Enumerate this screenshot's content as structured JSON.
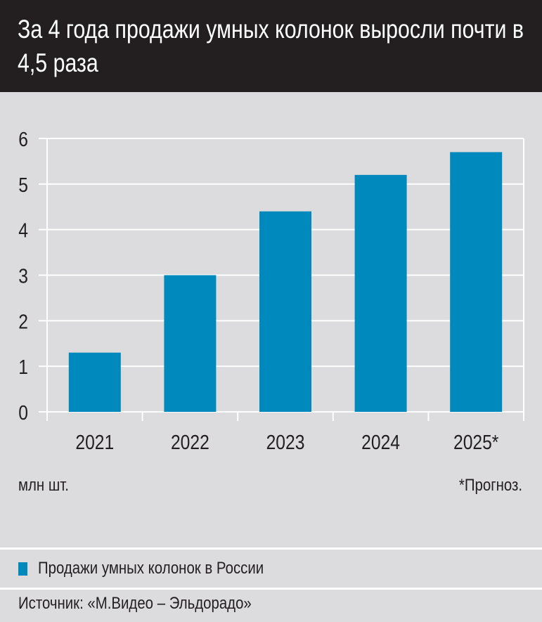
{
  "title": "За 4 года продажи умных колонок выросли почти в 4,5 раза",
  "unit_label": "млн шт.",
  "footnote": "*Прогноз.",
  "legend_label": "Продажи умных колонок в России",
  "source": "Источник: «М.Видео – Эльдорадо»",
  "colors": {
    "bar": "#0089bd",
    "background": "#dcdcde",
    "header": "#231f20",
    "grid": "#ffffff"
  },
  "chart_data": {
    "type": "bar",
    "title": "За 4 года продажи умных колонок выросли почти в 4,5 раза",
    "categories": [
      "2021",
      "2022",
      "2023",
      "2024",
      "2025*"
    ],
    "series": [
      {
        "name": "Продажи умных колонок в России",
        "values": [
          1.3,
          3.0,
          4.4,
          5.2,
          5.7
        ]
      }
    ],
    "ylabel": "млн шт.",
    "ylim": [
      0,
      6
    ],
    "yticks": [
      "0",
      "1",
      "2",
      "3",
      "4",
      "5",
      "6"
    ],
    "grid": true,
    "legend": "bottom-left"
  }
}
